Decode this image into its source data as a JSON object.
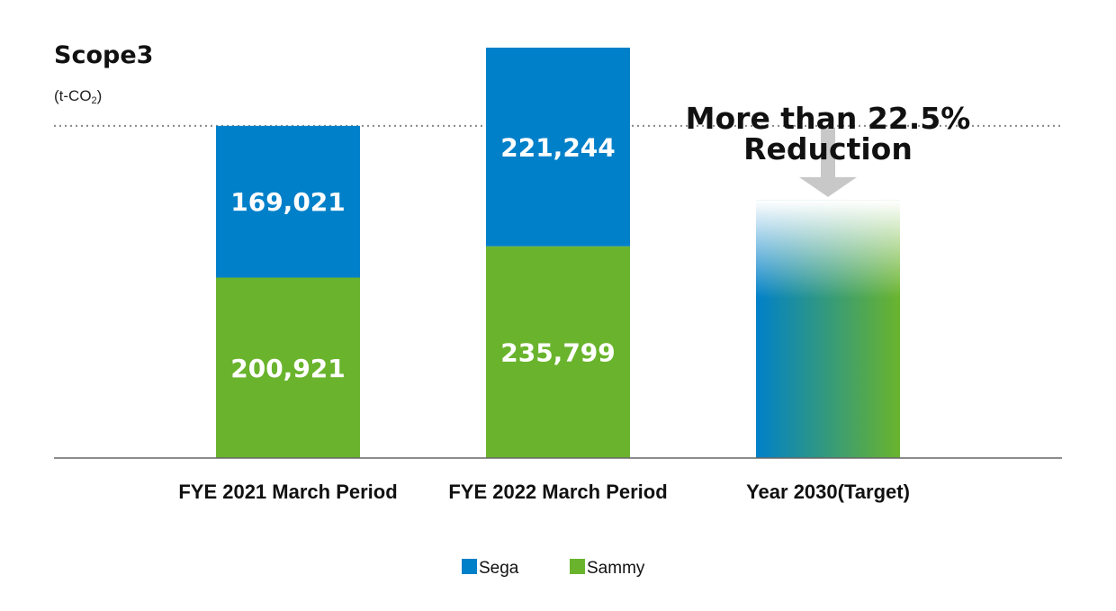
{
  "chart_data": {
    "type": "bar",
    "stacked": true,
    "title": "Scope3",
    "unit": {
      "main": "(t-CO",
      "sub": "2",
      "close": ")"
    },
    "categories": [
      "FYE 2021 March Period",
      "FYE 2022 March Period",
      "Year 2030(Target)"
    ],
    "series": [
      {
        "name": "Sammy",
        "color": "#6ab42d",
        "values": [
          200921,
          235799,
          null
        ],
        "labels": [
          "200,921",
          "235,799",
          ""
        ]
      },
      {
        "name": "Sega",
        "color": "#0080c9",
        "values": [
          169021,
          221244,
          null
        ],
        "labels": [
          "169,021",
          "221,244",
          ""
        ]
      }
    ],
    "target": {
      "category": "Year 2030(Target)",
      "reduction_text": [
        "More than 22.5%",
        "Reduction"
      ],
      "reduction_percent": 22.5,
      "reference_total": 369942,
      "approx_total": 286705
    },
    "reference_line": {
      "value": 369942,
      "style": "dotted"
    },
    "ylim": [
      0,
      470000
    ],
    "grid": false,
    "legend": {
      "position": "bottom-center",
      "items": [
        "Sega",
        "Sammy"
      ]
    }
  }
}
